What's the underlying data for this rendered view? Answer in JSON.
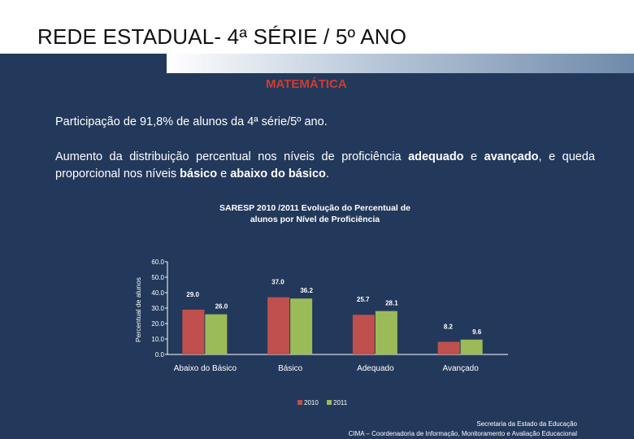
{
  "slide": {
    "title": "REDE ESTADUAL- 4ª SÉRIE / 5º ANO",
    "subject": "MATEMÁTICA",
    "participation": "Participação de 91,8% de alunos da 4ª série/5º ano.",
    "description": {
      "t1": "Aumento da distribuição percentual nos níveis de proficiência ",
      "b1": "adequado",
      "t2": " e ",
      "b2": "avançado",
      "t3": ", e queda proporcional nos níveis ",
      "b3": "básico",
      "t4": " e ",
      "b4": "abaixo do básico",
      "t5": "."
    }
  },
  "chart_data": {
    "type": "bar",
    "title": "SARESP 2010 /2011 Evolução do Percentual de alunos por Nível de Proficiência",
    "ylabel": "Percentual de alunos",
    "xlabel": "",
    "ylim": [
      0,
      60
    ],
    "yticks": [
      "0.0",
      "10.0",
      "20.0",
      "30.0",
      "40.0",
      "50.0",
      "60.0"
    ],
    "categories": [
      "Abaixo do Básico",
      "Básico",
      "Adequado",
      "Avançado"
    ],
    "series": [
      {
        "name": "2010",
        "values": [
          29.0,
          37.0,
          25.7,
          8.2
        ],
        "labels": [
          "29.0",
          "37.0",
          "25.7",
          "8.2"
        ],
        "color": "#c0504d"
      },
      {
        "name": "2011",
        "values": [
          26.0,
          36.2,
          28.1,
          9.6
        ],
        "labels": [
          "26.0",
          "36.2",
          "28.1",
          "9.6"
        ],
        "color": "#9bbb59"
      }
    ],
    "legend": "bottom",
    "grid": false
  },
  "footer": {
    "line1": "Secretaria da Estado da Educação",
    "line2": "CIMA – Coordenadoria de Informação, Monitoramento e Avaliação Educacional"
  }
}
